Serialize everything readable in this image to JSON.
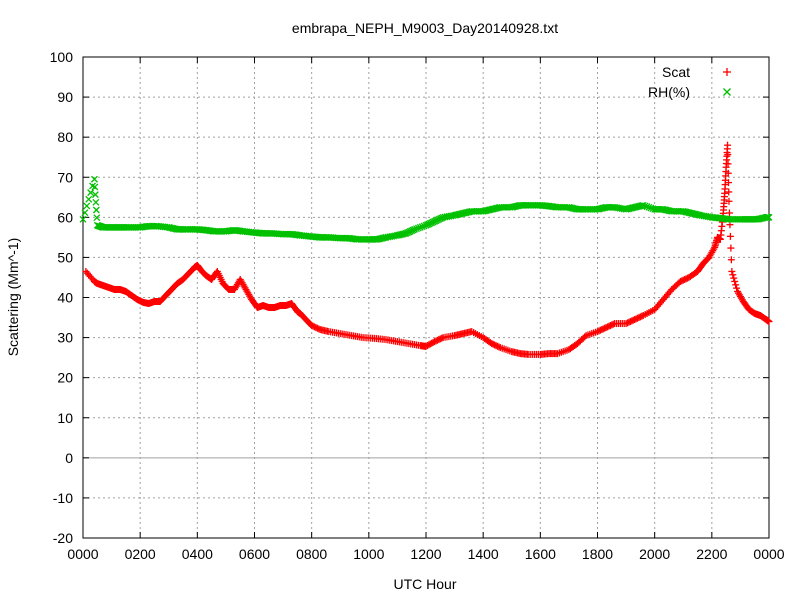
{
  "chart_data": {
    "type": "scatter",
    "title": "embrapa_NEPH_M9003_Day20140928.txt",
    "xlabel": "UTC Hour",
    "ylabel": "Scattering (Mm^-1)",
    "xlim": [
      0,
      24
    ],
    "ylim": [
      -20,
      100
    ],
    "x_ticks": [
      0,
      2,
      4,
      6,
      8,
      10,
      12,
      14,
      16,
      18,
      20,
      22,
      24
    ],
    "x_tick_labels": [
      "0000",
      "0200",
      "0400",
      "0600",
      "0800",
      "1000",
      "1200",
      "1400",
      "1600",
      "1800",
      "2000",
      "2200",
      "0000"
    ],
    "y_ticks": [
      -20,
      -10,
      0,
      10,
      20,
      30,
      40,
      50,
      60,
      70,
      80,
      90,
      100
    ],
    "grid": true,
    "legend_position": "top-right",
    "series": [
      {
        "name": "Scat",
        "marker": "+",
        "color": "#ff0000",
        "x": [
          0.1,
          0.4,
          0.5,
          0.7,
          0.9,
          1.1,
          1.3,
          1.5,
          1.7,
          1.9,
          2.1,
          2.3,
          2.5,
          2.7,
          2.9,
          3.1,
          3.3,
          3.5,
          3.7,
          3.9,
          4.0,
          4.1,
          4.3,
          4.5,
          4.7,
          4.9,
          5.1,
          5.3,
          5.5,
          5.7,
          5.9,
          6.1,
          6.3,
          6.5,
          6.7,
          6.9,
          7.1,
          7.3,
          7.5,
          7.6,
          7.8,
          8.0,
          8.3,
          8.6,
          9.0,
          9.4,
          9.8,
          10.2,
          10.6,
          11.0,
          11.4,
          11.8,
          12.0,
          12.3,
          12.6,
          13.0,
          13.3,
          13.6,
          14.0,
          14.3,
          14.6,
          15.0,
          15.3,
          15.6,
          16.0,
          16.3,
          16.6,
          17.0,
          17.3,
          17.6,
          18.0,
          18.3,
          18.6,
          19.0,
          19.3,
          19.6,
          20.0,
          20.3,
          20.6,
          20.9,
          21.2,
          21.5,
          21.7,
          21.9,
          22.1,
          22.2,
          22.3,
          22.4,
          22.45,
          22.5,
          22.55,
          22.6,
          22.7,
          22.9,
          23.1,
          23.3,
          23.5,
          23.7,
          23.9,
          24.0
        ],
        "y": [
          46.5,
          44.0,
          43.5,
          43.0,
          42.5,
          42.0,
          42.0,
          41.5,
          40.5,
          39.5,
          38.8,
          38.5,
          39.0,
          39.0,
          40.5,
          42.0,
          43.5,
          44.5,
          46.0,
          47.5,
          48.0,
          47.0,
          45.5,
          44.5,
          46.5,
          43.5,
          42.0,
          42.0,
          44.5,
          42.0,
          39.5,
          37.5,
          38.0,
          37.5,
          37.5,
          38.0,
          38.0,
          38.5,
          36.5,
          36.0,
          34.5,
          33.0,
          32.0,
          31.5,
          31.0,
          30.5,
          30.0,
          29.8,
          29.5,
          29.0,
          28.5,
          28.0,
          27.8,
          29.0,
          30.0,
          30.5,
          31.0,
          31.5,
          30.0,
          28.5,
          27.5,
          26.5,
          26.0,
          25.8,
          25.8,
          26.0,
          26.0,
          27.0,
          28.5,
          30.5,
          31.5,
          32.5,
          33.5,
          33.5,
          34.5,
          35.5,
          37.0,
          39.5,
          42.0,
          44.0,
          45.0,
          46.5,
          48.5,
          50.0,
          52.5,
          55.0,
          54.5,
          61.0,
          66.0,
          72.5,
          78.0,
          64.0,
          46.5,
          41.5,
          39.0,
          37.0,
          36.0,
          35.5,
          34.5,
          34.0
        ]
      },
      {
        "name": "RH(%)",
        "marker": "x",
        "color": "#00c000",
        "x": [
          0.0,
          0.4,
          0.5,
          0.7,
          1.0,
          1.3,
          1.6,
          2.0,
          2.3,
          2.6,
          3.0,
          3.3,
          3.6,
          4.0,
          4.3,
          4.6,
          5.0,
          5.3,
          5.6,
          6.0,
          6.3,
          6.6,
          7.0,
          7.3,
          7.6,
          8.0,
          8.3,
          8.6,
          9.0,
          9.3,
          9.6,
          10.0,
          10.3,
          10.6,
          11.0,
          11.3,
          11.6,
          12.0,
          12.3,
          12.6,
          13.0,
          13.3,
          13.6,
          14.0,
          14.3,
          14.6,
          15.0,
          15.3,
          15.6,
          16.0,
          16.3,
          16.6,
          17.0,
          17.3,
          17.6,
          18.0,
          18.3,
          18.6,
          19.0,
          19.3,
          19.6,
          20.0,
          20.3,
          20.6,
          21.0,
          21.3,
          21.6,
          22.0,
          22.3,
          22.6,
          23.0,
          23.3,
          23.6,
          23.9,
          24.0
        ],
        "y": [
          59.5,
          69.5,
          58.0,
          57.5,
          57.5,
          57.5,
          57.5,
          57.5,
          57.8,
          57.8,
          57.5,
          57.0,
          57.0,
          57.0,
          56.8,
          56.5,
          56.5,
          56.8,
          56.5,
          56.2,
          56.0,
          56.0,
          55.8,
          55.8,
          55.5,
          55.2,
          55.0,
          55.0,
          54.8,
          54.8,
          54.5,
          54.5,
          54.5,
          55.0,
          55.5,
          56.0,
          57.0,
          58.0,
          59.0,
          60.0,
          60.5,
          61.0,
          61.5,
          61.5,
          62.0,
          62.5,
          62.5,
          63.0,
          63.0,
          63.0,
          62.8,
          62.5,
          62.5,
          62.0,
          62.0,
          62.0,
          62.5,
          62.5,
          62.0,
          62.5,
          63.0,
          62.0,
          62.0,
          61.5,
          61.5,
          61.0,
          60.5,
          60.0,
          59.8,
          59.5,
          59.5,
          59.5,
          59.5,
          60.0,
          60.0
        ]
      }
    ]
  }
}
